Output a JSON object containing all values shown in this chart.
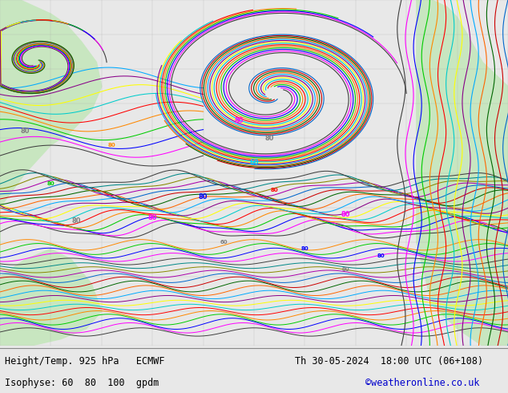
{
  "title_line1": "Height/Temp. 925 hPa   ECMWF",
  "title_line2": "Isophyse: 60  80  100  gpdm",
  "datetime_str": "Th 30-05-2024  18:00 UTC (06+108)",
  "copyright": "©weatheronline.co.uk",
  "text_color": "#000000",
  "bottom_bar_color": "#e8e8e8",
  "fig_width": 6.34,
  "fig_height": 4.9,
  "dpi": 100,
  "map_bg": "#b8d8e8",
  "land_color": "#c8e6c0",
  "colors_cycle": [
    "#404040",
    "#ff00ff",
    "#0000ff",
    "#00cc00",
    "#ff8800",
    "#ff0000",
    "#00cccc",
    "#ffff00",
    "#880088",
    "#00aaff",
    "#ff6600",
    "#006600",
    "#cc0000",
    "#0066cc",
    "#aa00aa",
    "#888800",
    "#008888"
  ]
}
